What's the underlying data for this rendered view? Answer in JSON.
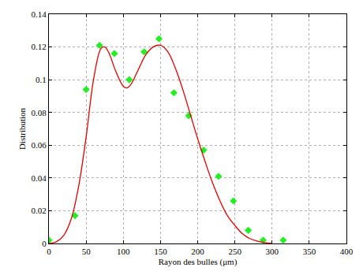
{
  "chart_data": {
    "type": "scatter",
    "x_label": "Rayon des bulles (μm)",
    "y_label": "Distribution",
    "xlim": [
      0,
      400
    ],
    "xticks": [
      0,
      50,
      100,
      150,
      200,
      250,
      300,
      350,
      400
    ],
    "ylim": [
      0,
      0.14
    ],
    "yticks": [
      0,
      0.02,
      0.04,
      0.06,
      0.08,
      0.1,
      0.12,
      0.14
    ],
    "grid": true,
    "series": [
      {
        "type": "scatter",
        "color": "#22ee22",
        "marker": "diamond",
        "x": [
          0,
          35,
          50,
          68,
          88,
          108,
          128,
          148,
          168,
          188,
          208,
          228,
          248,
          268,
          288,
          315
        ],
        "values": [
          0.002,
          0.017,
          0.094,
          0.121,
          0.116,
          0.1,
          0.117,
          0.125,
          0.092,
          0.078,
          0.057,
          0.041,
          0.026,
          0.008,
          0.002,
          0.002
        ]
      },
      {
        "type": "line",
        "color": "#e00000",
        "line_style": "solid",
        "x": [
          0,
          10,
          20,
          30,
          40,
          50,
          60,
          70,
          75,
          80,
          90,
          100,
          105,
          110,
          120,
          130,
          140,
          150,
          160,
          170,
          180,
          190,
          200,
          210,
          220,
          230,
          240,
          250,
          260,
          270,
          280,
          290,
          300
        ],
        "values": [
          0,
          0.001,
          0.005,
          0.015,
          0.035,
          0.065,
          0.1,
          0.119,
          0.12,
          0.117,
          0.105,
          0.096,
          0.095,
          0.097,
          0.106,
          0.115,
          0.12,
          0.121,
          0.117,
          0.107,
          0.094,
          0.079,
          0.064,
          0.05,
          0.037,
          0.026,
          0.017,
          0.011,
          0.006,
          0.003,
          0.0015,
          0.0005,
          0
        ]
      }
    ]
  }
}
